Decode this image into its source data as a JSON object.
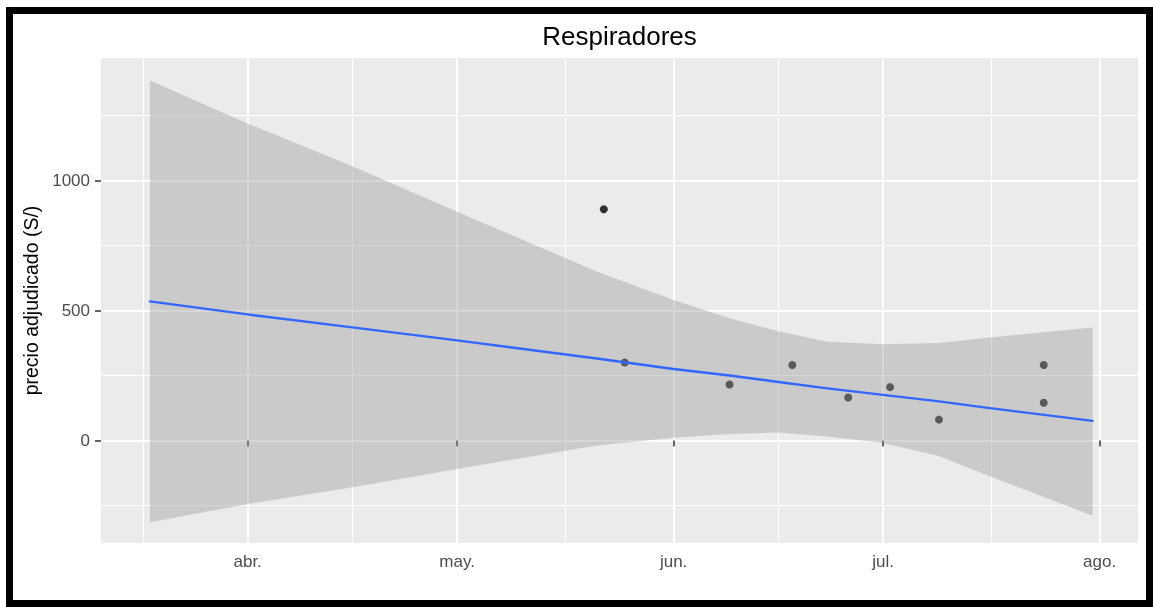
{
  "chart_data": {
    "type": "scatter",
    "title": "Respiradores",
    "ylabel": "precio adjudicado (S/)",
    "xlim": [
      "--03-11",
      "--08-06T12:00"
    ],
    "xticks": [
      {
        "value": "--04-01",
        "label": "abr."
      },
      {
        "value": "--05-01",
        "label": "may."
      },
      {
        "value": "--06-01",
        "label": "jun."
      },
      {
        "value": "--07-01",
        "label": "jul."
      },
      {
        "value": "--08-01",
        "label": "ago."
      }
    ],
    "ylim": [
      -395,
      1472
    ],
    "yticks": [
      0,
      500,
      1000
    ],
    "grid": true,
    "series": [
      {
        "marker": "circle",
        "color": "#000000",
        "x": [
          "--05-22",
          "--05-25",
          "--06-09",
          "--06-18",
          "--06-26",
          "--07-02",
          "--07-09",
          "--07-24",
          "--07-24"
        ],
        "values": [
          890,
          300,
          215,
          290,
          165,
          205,
          80,
          290,
          145
        ]
      },
      {
        "type": "line",
        "marker": "none",
        "color": "#3366ff",
        "x": [
          "--03-18",
          "--04-01",
          "--04-16",
          "--05-01",
          "--05-21",
          "--06-01",
          "--06-09",
          "--06-16",
          "--06-23",
          "--07-01",
          "--07-09",
          "--07-16",
          "--07-31"
        ],
        "values": [
          535,
          485,
          435,
          385,
          315,
          275,
          250,
          225,
          200,
          175,
          150,
          125,
          75
        ],
        "lower": [
          -315,
          -245,
          -180,
          -110,
          -20,
          10,
          25,
          30,
          15,
          -10,
          -60,
          -135,
          -290
        ],
        "upper": [
          1385,
          1220,
          1055,
          880,
          650,
          540,
          470,
          420,
          380,
          370,
          375,
          395,
          435
        ]
      }
    ]
  }
}
